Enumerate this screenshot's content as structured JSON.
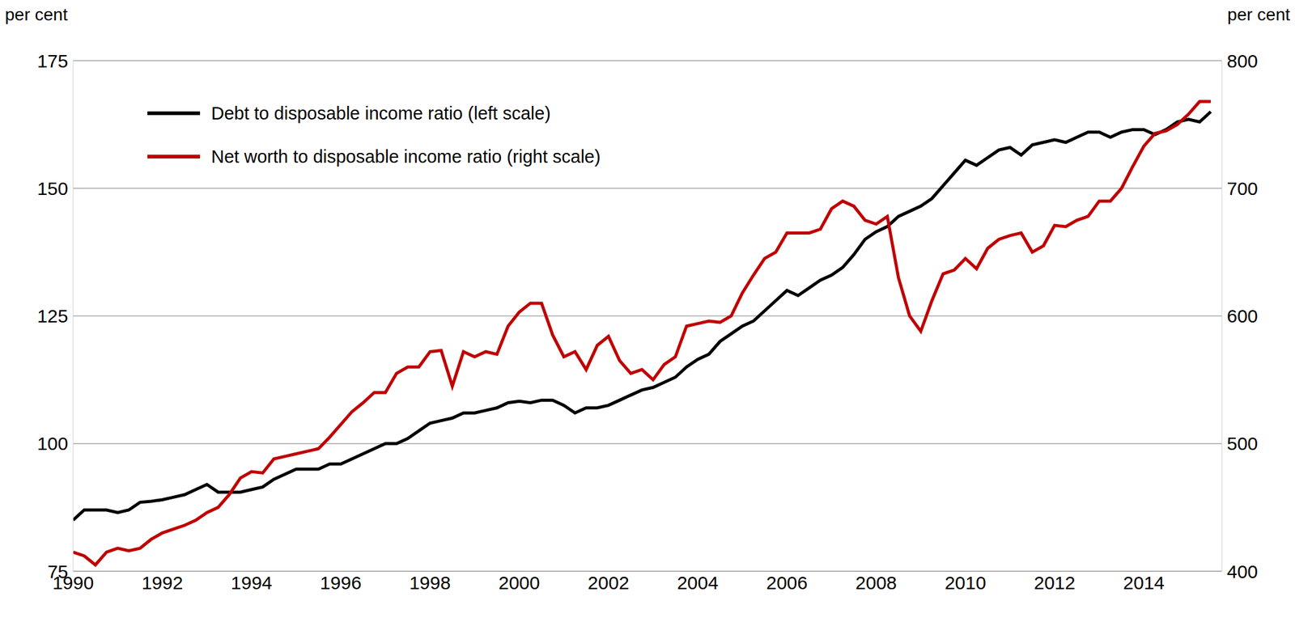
{
  "chart_data": {
    "type": "line",
    "y_label": "per cent",
    "y2_label": "per cent",
    "x": [
      1990,
      1990.25,
      1990.5,
      1990.75,
      1991,
      1991.25,
      1991.5,
      1991.75,
      1992,
      1992.25,
      1992.5,
      1992.75,
      1993,
      1993.25,
      1993.5,
      1993.75,
      1994,
      1994.25,
      1994.5,
      1994.75,
      1995,
      1995.25,
      1995.5,
      1995.75,
      1996,
      1996.25,
      1996.5,
      1996.75,
      1997,
      1997.25,
      1997.5,
      1997.75,
      1998,
      1998.25,
      1998.5,
      1998.75,
      1999,
      1999.25,
      1999.5,
      1999.75,
      2000,
      2000.25,
      2000.5,
      2000.75,
      2001,
      2001.25,
      2001.5,
      2001.75,
      2002,
      2002.25,
      2002.5,
      2002.75,
      2003,
      2003.25,
      2003.5,
      2003.75,
      2004,
      2004.25,
      2004.5,
      2004.75,
      2005,
      2005.25,
      2005.5,
      2005.75,
      2006,
      2006.25,
      2006.5,
      2006.75,
      2007,
      2007.25,
      2007.5,
      2007.75,
      2008,
      2008.25,
      2008.5,
      2008.75,
      2009,
      2009.25,
      2009.5,
      2009.75,
      2010,
      2010.25,
      2010.5,
      2010.75,
      2011,
      2011.25,
      2011.5,
      2011.75,
      2012,
      2012.25,
      2012.5,
      2012.75,
      2013,
      2013.25,
      2013.5,
      2013.75,
      2014,
      2014.25,
      2014.5,
      2014.75,
      2015,
      2015.25,
      2015.5
    ],
    "series": [
      {
        "name": "Debt to disposable income ratio (left scale)",
        "color": "#000000",
        "axis": "y",
        "values": [
          85,
          87,
          87,
          87,
          86.5,
          87,
          88.5,
          88.7,
          89,
          89.5,
          90,
          91,
          92,
          90.5,
          90.5,
          90.5,
          91,
          91.5,
          93,
          94,
          95,
          95,
          95,
          96,
          96,
          97,
          98,
          99,
          100,
          100,
          101,
          102.5,
          104,
          104.5,
          105,
          106,
          106,
          106.5,
          107,
          108,
          108.3,
          108,
          108.5,
          108.5,
          107.5,
          106,
          107,
          107,
          107.5,
          108.5,
          109.5,
          110.5,
          111,
          112,
          113,
          115,
          116.5,
          117.5,
          120,
          121.5,
          123,
          124,
          126,
          128,
          130,
          129,
          130.5,
          132,
          133,
          134.5,
          137,
          140,
          141.5,
          142.5,
          144.5,
          145.5,
          146.5,
          148,
          150.5,
          153,
          155.5,
          154.5,
          156,
          157.5,
          158,
          156.5,
          158.5,
          159,
          159.5,
          159,
          160,
          161,
          161,
          160,
          161,
          161.5,
          161.5,
          160.5,
          161.5,
          163,
          163.5,
          163,
          165
        ]
      },
      {
        "name": "Net worth to disposable income ratio (right scale)",
        "color": "#c00000",
        "axis": "y2",
        "values": [
          415,
          412,
          405,
          415,
          418,
          416,
          418,
          425,
          430,
          433,
          436,
          440,
          446,
          450,
          460,
          473,
          478,
          477,
          488,
          490,
          492,
          494,
          496,
          505,
          515,
          525,
          532,
          540,
          540,
          555,
          560,
          560,
          572,
          573,
          545,
          572,
          568,
          572,
          570,
          592,
          603,
          610,
          610,
          585,
          568,
          572,
          558,
          577,
          584,
          565,
          555,
          558,
          550,
          562,
          568,
          592,
          594,
          596,
          595,
          600,
          618,
          632,
          645,
          650,
          665,
          665,
          665,
          668,
          684,
          690,
          686,
          675,
          672,
          678,
          630,
          600,
          588,
          612,
          633,
          636,
          645,
          637,
          653,
          660,
          663,
          665,
          650,
          655,
          671,
          670,
          675,
          678,
          690,
          690,
          700,
          717,
          733,
          743,
          745,
          750,
          758,
          768,
          768
        ]
      }
    ],
    "xlim": [
      1990,
      2015.75
    ],
    "xticks": [
      1990,
      1992,
      1994,
      1996,
      1998,
      2000,
      2002,
      2004,
      2006,
      2008,
      2010,
      2012,
      2014
    ],
    "ylim": [
      75,
      175
    ],
    "yticks": [
      75,
      100,
      125,
      150,
      175
    ],
    "y2lim": [
      400,
      800
    ],
    "y2ticks": [
      400,
      500,
      600,
      700,
      800
    ],
    "grid": true,
    "legend": "upper left"
  }
}
